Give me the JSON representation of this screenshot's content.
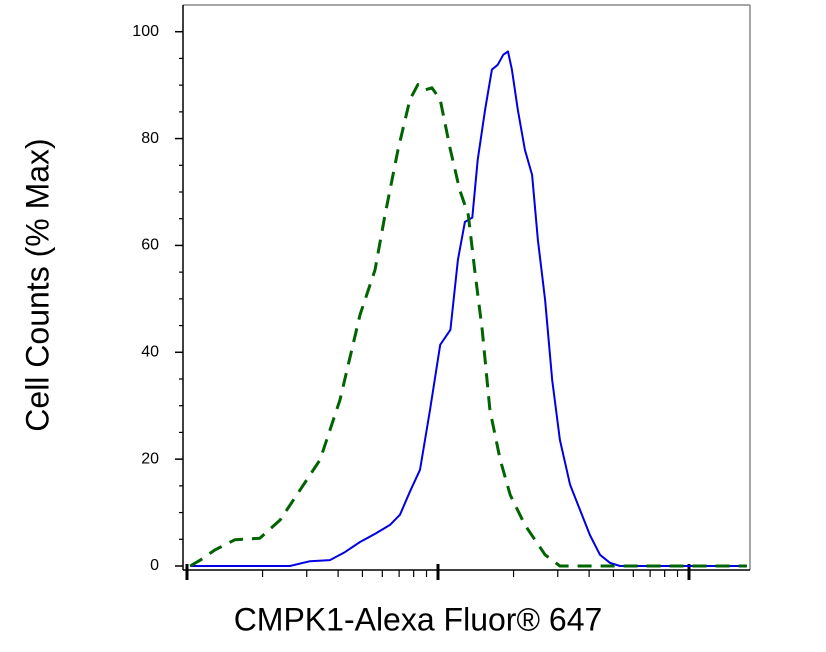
{
  "chart_data": {
    "type": "line",
    "x_label": "CMPK1-Alexa Fluor® 647",
    "y_label": "Cell Counts (% Max)",
    "xscale": "log",
    "xlim": [
      0.964,
      175
    ],
    "xticks": [
      1,
      10,
      100
    ],
    "xminorticks": [
      2,
      3,
      4,
      5,
      6,
      7,
      8,
      9,
      20,
      30,
      40,
      50,
      60,
      70,
      80,
      90
    ],
    "ylim": [
      -0.75,
      105
    ],
    "yticks": [
      0,
      20,
      40,
      60,
      80,
      100
    ],
    "yminorticks": [
      5,
      10,
      15,
      25,
      30,
      35,
      45,
      50,
      55,
      65,
      70,
      75,
      85,
      90,
      95
    ],
    "series": [
      {
        "color": "#0000e0",
        "dash": false,
        "x": [
          1.03,
          1.78,
          2.57,
          3.09,
          3.71,
          4.26,
          4.89,
          5.61,
          6.44,
          7.06,
          7.73,
          8.48,
          9.29,
          10.2,
          11.2,
          12.0,
          12.8,
          13.7,
          14.4,
          15.4,
          16.4,
          17.3,
          18.2,
          19.0,
          19.7,
          20.8,
          22.2,
          23.7,
          25.0,
          26.7,
          28.5,
          30.6,
          33.6,
          36.8,
          40.3,
          44.2,
          48.4,
          53.1,
          170
        ],
        "values": [
          0,
          0,
          0,
          0.9,
          1.1,
          2.6,
          4.5,
          6.0,
          7.7,
          9.6,
          13.9,
          18.0,
          29.2,
          41.4,
          44.2,
          57.3,
          64.4,
          65.2,
          76.0,
          85.4,
          92.9,
          93.8,
          95.7,
          96.3,
          92.9,
          85.4,
          77.9,
          73.2,
          61.0,
          49.8,
          34.8,
          23.6,
          15.2,
          10.5,
          5.8,
          2.1,
          0.6,
          0,
          0
        ]
      },
      {
        "color": "#006400",
        "dash": true,
        "x": [
          1.03,
          1.13,
          1.29,
          1.55,
          1.95,
          2.35,
          2.82,
          3.39,
          4.07,
          4.89,
          5.61,
          6.15,
          6.93,
          7.73,
          8.32,
          8.87,
          9.46,
          10.2,
          11.2,
          12.2,
          13.2,
          14.0,
          15.0,
          16.1,
          17.7,
          19.4,
          22.2,
          26.7,
          30.6,
          170
        ],
        "values": [
          0,
          1.1,
          3.0,
          4.9,
          5.2,
          8.6,
          14.2,
          19.9,
          31.1,
          47.0,
          55.4,
          65.7,
          77.9,
          87.3,
          90.1,
          89.1,
          89.5,
          87.3,
          77.9,
          70.4,
          65.7,
          55.4,
          44.2,
          29.2,
          19.9,
          13.3,
          7.7,
          2.1,
          0,
          0
        ]
      }
    ]
  }
}
